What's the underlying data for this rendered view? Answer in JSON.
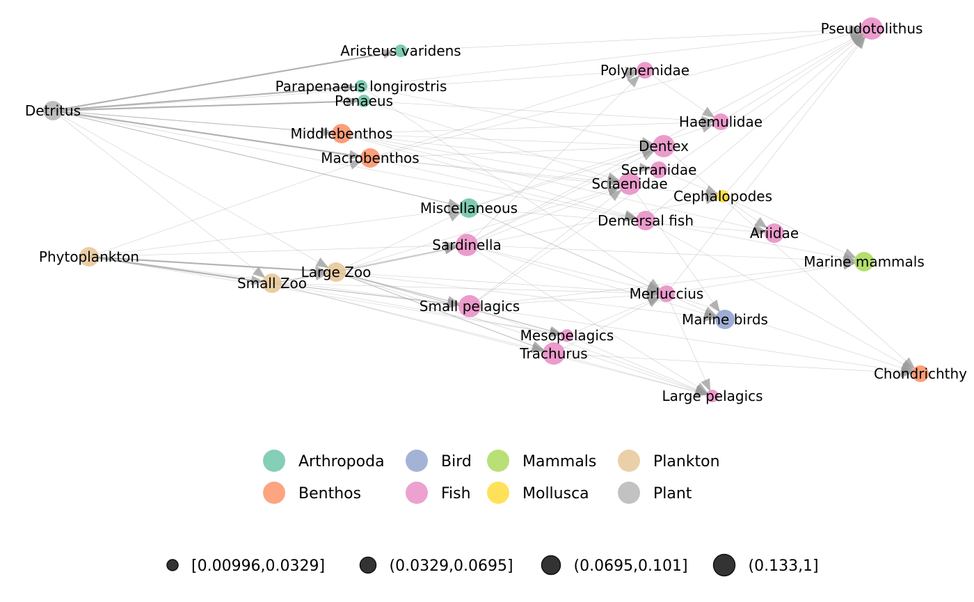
{
  "group_colors": {
    "Arthropoda": "#66C2A5",
    "Benthos": "#FC8D62",
    "Bird": "#8DA0CB",
    "Fish": "#E78AC3",
    "Mammals": "#A6D854",
    "Mollusca": "#FFD92F",
    "Plankton": "#E5C494",
    "Plant": "#B3B3B3"
  },
  "edge_color": "#a6a6a6",
  "nodes": [
    {
      "id": "Pseudotolithus",
      "group": "Fish",
      "size": 4
    },
    {
      "id": "Aristeus varidens",
      "group": "Arthropoda",
      "size": 1
    },
    {
      "id": "Polynemidae",
      "group": "Fish",
      "size": 2
    },
    {
      "id": "Parapenaeus longirostris",
      "group": "Arthropoda",
      "size": 1
    },
    {
      "id": "Penaeus",
      "group": "Arthropoda",
      "size": 1
    },
    {
      "id": "Detritus",
      "group": "Plant",
      "size": 3
    },
    {
      "id": "Haemulidae",
      "group": "Fish",
      "size": 2
    },
    {
      "id": "Middlebenthos",
      "group": "Benthos",
      "size": 3
    },
    {
      "id": "Dentex",
      "group": "Fish",
      "size": 4
    },
    {
      "id": "Macrobenthos",
      "group": "Benthos",
      "size": 3
    },
    {
      "id": "Serranidae",
      "group": "Fish",
      "size": 2
    },
    {
      "id": "Sciaenidae",
      "group": "Fish",
      "size": 4
    },
    {
      "id": "Cephalopodes",
      "group": "Mollusca",
      "size": 1
    },
    {
      "id": "Miscellaneous",
      "group": "Arthropoda",
      "size": 3
    },
    {
      "id": "Demersal fish",
      "group": "Fish",
      "size": 3
    },
    {
      "id": "Ariidae",
      "group": "Fish",
      "size": 3
    },
    {
      "id": "Sardinella",
      "group": "Fish",
      "size": 4
    },
    {
      "id": "Phytoplankton",
      "group": "Plankton",
      "size": 3
    },
    {
      "id": "Marine mammals",
      "group": "Mammals",
      "size": 3
    },
    {
      "id": "Large Zoo",
      "group": "Plankton",
      "size": 3
    },
    {
      "id": "Small Zoo",
      "group": "Plankton",
      "size": 3
    },
    {
      "id": "Merluccius",
      "group": "Fish",
      "size": 2
    },
    {
      "id": "Small pelagics",
      "group": "Fish",
      "size": 4
    },
    {
      "id": "Marine birds",
      "group": "Bird",
      "size": 3
    },
    {
      "id": "Mesopelagics",
      "group": "Fish",
      "size": 1
    },
    {
      "id": "Trachurus",
      "group": "Fish",
      "size": 4
    },
    {
      "id": "Chondrichthy",
      "group": "Benthos",
      "size": 2
    },
    {
      "id": "Large pelagics",
      "group": "Fish",
      "size": 1
    }
  ],
  "edges": [
    [
      "Detritus",
      "Aristeus varidens",
      3
    ],
    [
      "Detritus",
      "Parapenaeus longirostris",
      3
    ],
    [
      "Detritus",
      "Penaeus",
      3
    ],
    [
      "Detritus",
      "Middlebenthos",
      2
    ],
    [
      "Detritus",
      "Macrobenthos",
      3
    ],
    [
      "Detritus",
      "Miscellaneous",
      2
    ],
    [
      "Detritus",
      "Small Zoo",
      1
    ],
    [
      "Detritus",
      "Large Zoo",
      1
    ],
    [
      "Detritus",
      "Polynemidae",
      1
    ],
    [
      "Detritus",
      "Demersal fish",
      1
    ],
    [
      "Phytoplankton",
      "Small Zoo",
      3
    ],
    [
      "Phytoplankton",
      "Large Zoo",
      3
    ],
    [
      "Phytoplankton",
      "Miscellaneous",
      1
    ],
    [
      "Phytoplankton",
      "Sardinella",
      1
    ],
    [
      "Phytoplankton",
      "Small pelagics",
      1
    ],
    [
      "Phytoplankton",
      "Mesopelagics",
      1
    ],
    [
      "Phytoplankton",
      "Macrobenthos",
      1
    ],
    [
      "Small Zoo",
      "Large Zoo",
      2
    ],
    [
      "Small Zoo",
      "Sardinella",
      1
    ],
    [
      "Small Zoo",
      "Small pelagics",
      2
    ],
    [
      "Small Zoo",
      "Mesopelagics",
      1
    ],
    [
      "Small Zoo",
      "Trachurus",
      1
    ],
    [
      "Small Zoo",
      "Merluccius",
      1
    ],
    [
      "Small Zoo",
      "Large pelagics",
      1
    ],
    [
      "Large Zoo",
      "Sardinella",
      2
    ],
    [
      "Large Zoo",
      "Small pelagics",
      2
    ],
    [
      "Large Zoo",
      "Mesopelagics",
      2
    ],
    [
      "Large Zoo",
      "Trachurus",
      2
    ],
    [
      "Large Zoo",
      "Miscellaneous",
      1
    ],
    [
      "Large Zoo",
      "Merluccius",
      1
    ],
    [
      "Large Zoo",
      "Cephalopodes",
      1
    ],
    [
      "Large Zoo",
      "Sciaenidae",
      1
    ],
    [
      "Large Zoo",
      "Large pelagics",
      1
    ],
    [
      "Large Zoo",
      "Marine birds",
      1
    ],
    [
      "Middlebenthos",
      "Dentex",
      1
    ],
    [
      "Middlebenthos",
      "Serranidae",
      1
    ],
    [
      "Middlebenthos",
      "Sciaenidae",
      1
    ],
    [
      "Middlebenthos",
      "Haemulidae",
      1
    ],
    [
      "Middlebenthos",
      "Demersal fish",
      1
    ],
    [
      "Middlebenthos",
      "Ariidae",
      1
    ],
    [
      "Macrobenthos",
      "Dentex",
      1
    ],
    [
      "Macrobenthos",
      "Sciaenidae",
      1
    ],
    [
      "Macrobenthos",
      "Demersal fish",
      1
    ],
    [
      "Macrobenthos",
      "Pseudotolithus",
      1
    ],
    [
      "Macrobenthos",
      "Polynemidae",
      1
    ],
    [
      "Macrobenthos",
      "Cephalopodes",
      1
    ],
    [
      "Parapenaeus longirostris",
      "Pseudotolithus",
      1
    ],
    [
      "Parapenaeus longirostris",
      "Merluccius",
      1
    ],
    [
      "Parapenaeus longirostris",
      "Dentex",
      1
    ],
    [
      "Aristeus varidens",
      "Pseudotolithus",
      1
    ],
    [
      "Penaeus",
      "Sciaenidae",
      1
    ],
    [
      "Penaeus",
      "Haemulidae",
      1
    ],
    [
      "Miscellaneous",
      "Haemulidae",
      1
    ],
    [
      "Miscellaneous",
      "Dentex",
      1
    ],
    [
      "Miscellaneous",
      "Marine birds",
      1
    ],
    [
      "Miscellaneous",
      "Merluccius",
      1
    ],
    [
      "Miscellaneous",
      "Ariidae",
      1
    ],
    [
      "Sardinella",
      "Dentex",
      1
    ],
    [
      "Sardinella",
      "Sciaenidae",
      1
    ],
    [
      "Sardinella",
      "Marine mammals",
      1
    ],
    [
      "Sardinella",
      "Merluccius",
      1
    ],
    [
      "Sardinella",
      "Marine birds",
      1
    ],
    [
      "Sardinella",
      "Pseudotolithus",
      1
    ],
    [
      "Sardinella",
      "Large pelagics",
      1
    ],
    [
      "Sardinella",
      "Polynemidae",
      1
    ],
    [
      "Small pelagics",
      "Sciaenidae",
      1
    ],
    [
      "Small pelagics",
      "Merluccius",
      1
    ],
    [
      "Small pelagics",
      "Marine mammals",
      1
    ],
    [
      "Small pelagics",
      "Chondrichthy",
      1
    ],
    [
      "Small pelagics",
      "Pseudotolithus",
      1
    ],
    [
      "Small pelagics",
      "Large pelagics",
      1
    ],
    [
      "Mesopelagics",
      "Merluccius",
      1
    ],
    [
      "Mesopelagics",
      "Large pelagics",
      1
    ],
    [
      "Trachurus",
      "Large pelagics",
      1
    ],
    [
      "Trachurus",
      "Chondrichthy",
      1
    ],
    [
      "Trachurus",
      "Merluccius",
      1
    ],
    [
      "Cephalopodes",
      "Pseudotolithus",
      1
    ],
    [
      "Cephalopodes",
      "Marine mammals",
      1
    ],
    [
      "Cephalopodes",
      "Ariidae",
      1
    ],
    [
      "Demersal fish",
      "Marine mammals",
      1
    ],
    [
      "Demersal fish",
      "Chondrichthy",
      1
    ],
    [
      "Demersal fish",
      "Pseudotolithus",
      1
    ],
    [
      "Merluccius",
      "Marine mammals",
      1
    ],
    [
      "Merluccius",
      "Pseudotolithus",
      1
    ],
    [
      "Merluccius",
      "Large pelagics",
      1
    ],
    [
      "Merluccius",
      "Chondrichthy",
      1
    ],
    [
      "Haemulidae",
      "Pseudotolithus",
      1
    ],
    [
      "Serranidae",
      "Cephalopodes",
      1
    ],
    [
      "Dentex",
      "Chondrichthy",
      1
    ],
    [
      "Sciaenidae",
      "Marine birds",
      1
    ],
    [
      "Polynemidae",
      "Haemulidae",
      1
    ]
  ],
  "legend_groups": [
    "Arthropoda",
    "Bird",
    "Mammals",
    "Plankton",
    "Benthos",
    "Fish",
    "Mollusca",
    "Plant"
  ],
  "legend_sizes": [
    "[0.00996,0.0329]",
    "(0.0329,0.0695]",
    "(0.0695,0.101]",
    "(0.133,1]"
  ]
}
